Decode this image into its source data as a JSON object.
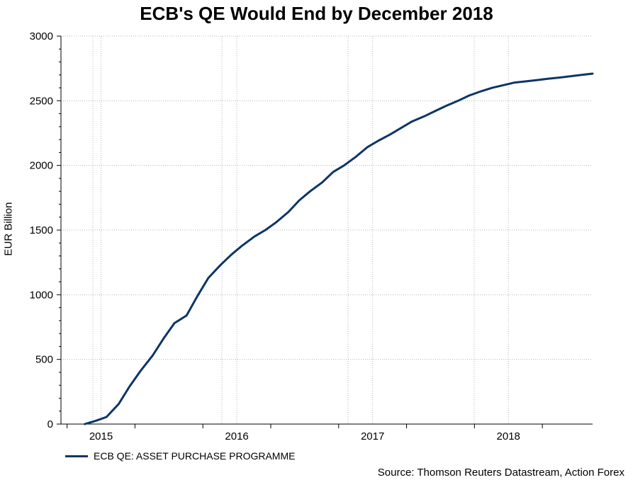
{
  "chart_data": {
    "type": "line",
    "title": "ECB's QE Would End by December 2018",
    "xlabel": "",
    "ylabel": "EUR Billion",
    "ylim": [
      0,
      3000
    ],
    "yticks": [
      0,
      500,
      1000,
      1500,
      2000,
      2500,
      3000
    ],
    "xlim": [
      2014.79,
      2018.62
    ],
    "xtick_labels": [
      "2015",
      "2016",
      "2017",
      "2018"
    ],
    "x_label_positions": [
      2015.0,
      2016.0,
      2017.0,
      2018.0
    ],
    "x_tick_positions": [
      2014.75,
      2015.25,
      2015.75,
      2016.25,
      2016.75,
      2017.25,
      2017.75,
      2018.25
    ],
    "grid": true,
    "legend_position": "bottom-left",
    "source": "Source: Thomson Reuters Datastream, Action Forex",
    "series": [
      {
        "name": "ECB QE: ASSET PURCHASE PROGRAMME",
        "color": "#0d3566",
        "x": [
          2014.88,
          2014.96,
          2015.04,
          2015.13,
          2015.21,
          2015.29,
          2015.38,
          2015.46,
          2015.54,
          2015.63,
          2015.71,
          2015.79,
          2015.88,
          2015.96,
          2016.04,
          2016.13,
          2016.21,
          2016.29,
          2016.38,
          2016.46,
          2016.54,
          2016.63,
          2016.71,
          2016.79,
          2016.88,
          2016.96,
          2017.04,
          2017.13,
          2017.21,
          2017.29,
          2017.38,
          2017.46,
          2017.54,
          2017.63,
          2017.71,
          2017.79,
          2017.88,
          2017.96,
          2018.04,
          2018.13,
          2018.21,
          2018.29,
          2018.38,
          2018.46,
          2018.54,
          2018.62
        ],
        "values": [
          0,
          25,
          55,
          155,
          290,
          410,
          530,
          660,
          780,
          840,
          990,
          1130,
          1230,
          1310,
          1380,
          1450,
          1500,
          1560,
          1640,
          1730,
          1800,
          1870,
          1950,
          2000,
          2070,
          2140,
          2190,
          2240,
          2290,
          2340,
          2380,
          2420,
          2460,
          2500,
          2540,
          2570,
          2600,
          2620,
          2640,
          2650,
          2660,
          2670,
          2680,
          2690,
          2700,
          2710
        ]
      }
    ]
  }
}
